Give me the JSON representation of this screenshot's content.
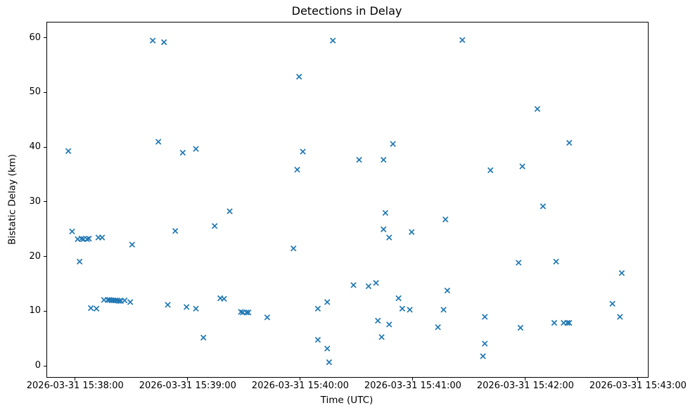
{
  "figure": {
    "background": "#ffffff",
    "title": "Detections in Delay"
  },
  "chart_data": {
    "type": "scatter",
    "title": "Detections in Delay",
    "xlabel": "Time (UTC)",
    "ylabel": "Bistatic Delay (km)",
    "marker": "x",
    "marker_color": "#1f77b4",
    "grid": false,
    "legend": "none",
    "x_tick_labels": [
      "2026-03-31 15:38:00",
      "2026-03-31 15:39:00",
      "2026-03-31 15:40:00",
      "2026-03-31 15:41:00",
      "2026-03-31 15:42:00",
      "2026-03-31 15:43:00"
    ],
    "y_ticks": [
      0,
      10,
      20,
      30,
      40,
      50,
      60
    ],
    "x_range_s": [
      -15.3,
      304.9
    ],
    "x_range_time": [
      "15:37:45",
      "15:43:05"
    ],
    "ylim": [
      -1.9,
      62.9
    ],
    "x_units": "time UTC on 2026-03-31",
    "y_units": "km",
    "points": [
      [
        "15:37:56",
        39.4
      ],
      [
        "15:37:58",
        24.7
      ],
      [
        "15:38:01",
        23.3
      ],
      [
        "15:38:02",
        19.2
      ],
      [
        "15:38:03",
        23.4
      ],
      [
        "15:38:04",
        23.3
      ],
      [
        "15:38:06",
        23.3
      ],
      [
        "15:38:07",
        23.4
      ],
      [
        "15:38:08",
        10.7
      ],
      [
        "15:38:11",
        10.6
      ],
      [
        "15:38:12",
        23.6
      ],
      [
        "15:38:14",
        23.6
      ],
      [
        "15:38:15",
        12.2
      ],
      [
        "15:38:17",
        12.2
      ],
      [
        "15:38:18",
        12.2
      ],
      [
        "15:38:19",
        12.1
      ],
      [
        "15:38:20",
        12.1
      ],
      [
        "15:38:21",
        12.1
      ],
      [
        "15:38:22",
        12.1
      ],
      [
        "15:38:23",
        12.0
      ],
      [
        "15:38:24",
        12.0
      ],
      [
        "15:38:26",
        12.1
      ],
      [
        "15:38:29",
        11.8
      ],
      [
        "15:38:30",
        22.3
      ],
      [
        "15:38:41",
        59.6
      ],
      [
        "15:38:44",
        41.1
      ],
      [
        "15:38:47",
        59.3
      ],
      [
        "15:38:49",
        11.3
      ],
      [
        "15:38:53",
        24.8
      ],
      [
        "15:38:57",
        39.1
      ],
      [
        "15:38:59",
        10.9
      ],
      [
        "15:39:04",
        39.8
      ],
      [
        "15:39:04",
        10.6
      ],
      [
        "15:39:08",
        5.3
      ],
      [
        "15:39:14",
        25.7
      ],
      [
        "15:39:17",
        12.5
      ],
      [
        "15:39:19",
        12.4
      ],
      [
        "15:39:22",
        28.4
      ],
      [
        "15:39:28",
        10.0
      ],
      [
        "15:39:29",
        9.9
      ],
      [
        "15:39:31",
        9.9
      ],
      [
        "15:39:32",
        9.9
      ],
      [
        "15:39:42",
        9.0
      ],
      [
        "15:39:56",
        21.6
      ],
      [
        "15:39:58",
        36.0
      ],
      [
        "15:39:59",
        53.0
      ],
      [
        "15:40:01",
        39.3
      ],
      [
        "15:40:09",
        10.6
      ],
      [
        "15:40:09",
        4.9
      ],
      [
        "15:40:14",
        11.8
      ],
      [
        "15:40:14",
        3.3
      ],
      [
        "15:40:15",
        0.8
      ],
      [
        "15:40:17",
        59.6
      ],
      [
        "15:40:28",
        14.9
      ],
      [
        "15:40:31",
        37.8
      ],
      [
        "15:40:36",
        14.7
      ],
      [
        "15:40:40",
        15.3
      ],
      [
        "15:40:41",
        8.4
      ],
      [
        "15:40:43",
        5.4
      ],
      [
        "15:40:44",
        37.8
      ],
      [
        "15:40:44",
        25.1
      ],
      [
        "15:40:45",
        28.1
      ],
      [
        "15:40:47",
        23.6
      ],
      [
        "15:40:47",
        7.7
      ],
      [
        "15:40:49",
        40.7
      ],
      [
        "15:40:52",
        12.5
      ],
      [
        "15:40:54",
        10.6
      ],
      [
        "15:40:58",
        10.4
      ],
      [
        "15:40:59",
        24.6
      ],
      [
        "15:41:13",
        7.2
      ],
      [
        "15:41:16",
        10.4
      ],
      [
        "15:41:17",
        26.9
      ],
      [
        "15:41:18",
        13.9
      ],
      [
        "15:41:26",
        59.7
      ],
      [
        "15:41:37",
        1.9
      ],
      [
        "15:41:38",
        4.2
      ],
      [
        "15:41:38",
        9.1
      ],
      [
        "15:41:41",
        35.9
      ],
      [
        "15:41:56",
        19.0
      ],
      [
        "15:41:57",
        7.1
      ],
      [
        "15:41:58",
        36.6
      ],
      [
        "15:42:06",
        47.1
      ],
      [
        "15:42:09",
        29.3
      ],
      [
        "15:42:15",
        8.0
      ],
      [
        "15:42:16",
        19.2
      ],
      [
        "15:42:20",
        8.0
      ],
      [
        "15:42:22",
        8.0
      ],
      [
        "15:42:23",
        8.0
      ],
      [
        "15:42:23",
        40.9
      ],
      [
        "15:42:46",
        11.5
      ],
      [
        "15:42:50",
        9.1
      ],
      [
        "15:42:51",
        17.1
      ]
    ]
  }
}
